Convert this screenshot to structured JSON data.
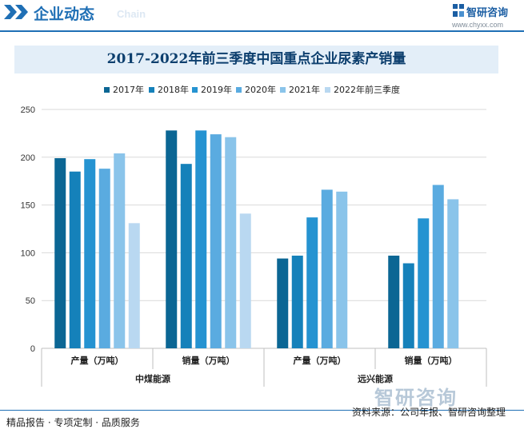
{
  "header": {
    "section_title": "企业动态",
    "section_en": "Chain",
    "logo_name": "智研咨询",
    "logo_url": "www.chyxx.com"
  },
  "colors": {
    "accent": "#1f6fb5",
    "title_bg": "#e3eef8",
    "series": [
      "#0b6694",
      "#1581ba",
      "#2593d1",
      "#5aabe0",
      "#8ac4ea",
      "#b9d8f1"
    ]
  },
  "footer": {
    "left": "精品报告 · 专项定制 · 品质服务",
    "right": "资料来源：公司年报、智研咨询整理",
    "watermark": "智研咨询"
  },
  "chart_data": {
    "type": "bar",
    "title": "2017-2022年前三季度中国重点企业尿素产销量",
    "groups": [
      "中煤能源",
      "远兴能源"
    ],
    "categories": [
      "产量（万吨）",
      "销量（万吨）",
      "产量（万吨）",
      "销量（万吨）"
    ],
    "category_group": [
      0,
      0,
      1,
      1
    ],
    "ylim": [
      0,
      250
    ],
    "yticks": [
      0,
      50,
      100,
      150,
      200,
      250
    ],
    "grid": true,
    "legend_position": "top",
    "series": [
      {
        "name": "2017年",
        "values": [
          199,
          228,
          94,
          97
        ]
      },
      {
        "name": "2018年",
        "values": [
          185,
          193,
          97,
          89
        ]
      },
      {
        "name": "2019年",
        "values": [
          198,
          228,
          137,
          136
        ]
      },
      {
        "name": "2020年",
        "values": [
          188,
          224,
          166,
          171
        ]
      },
      {
        "name": "2021年",
        "values": [
          204,
          221,
          164,
          156
        ]
      },
      {
        "name": "2022年前三季度",
        "values": [
          131,
          141,
          null,
          null
        ]
      }
    ]
  }
}
